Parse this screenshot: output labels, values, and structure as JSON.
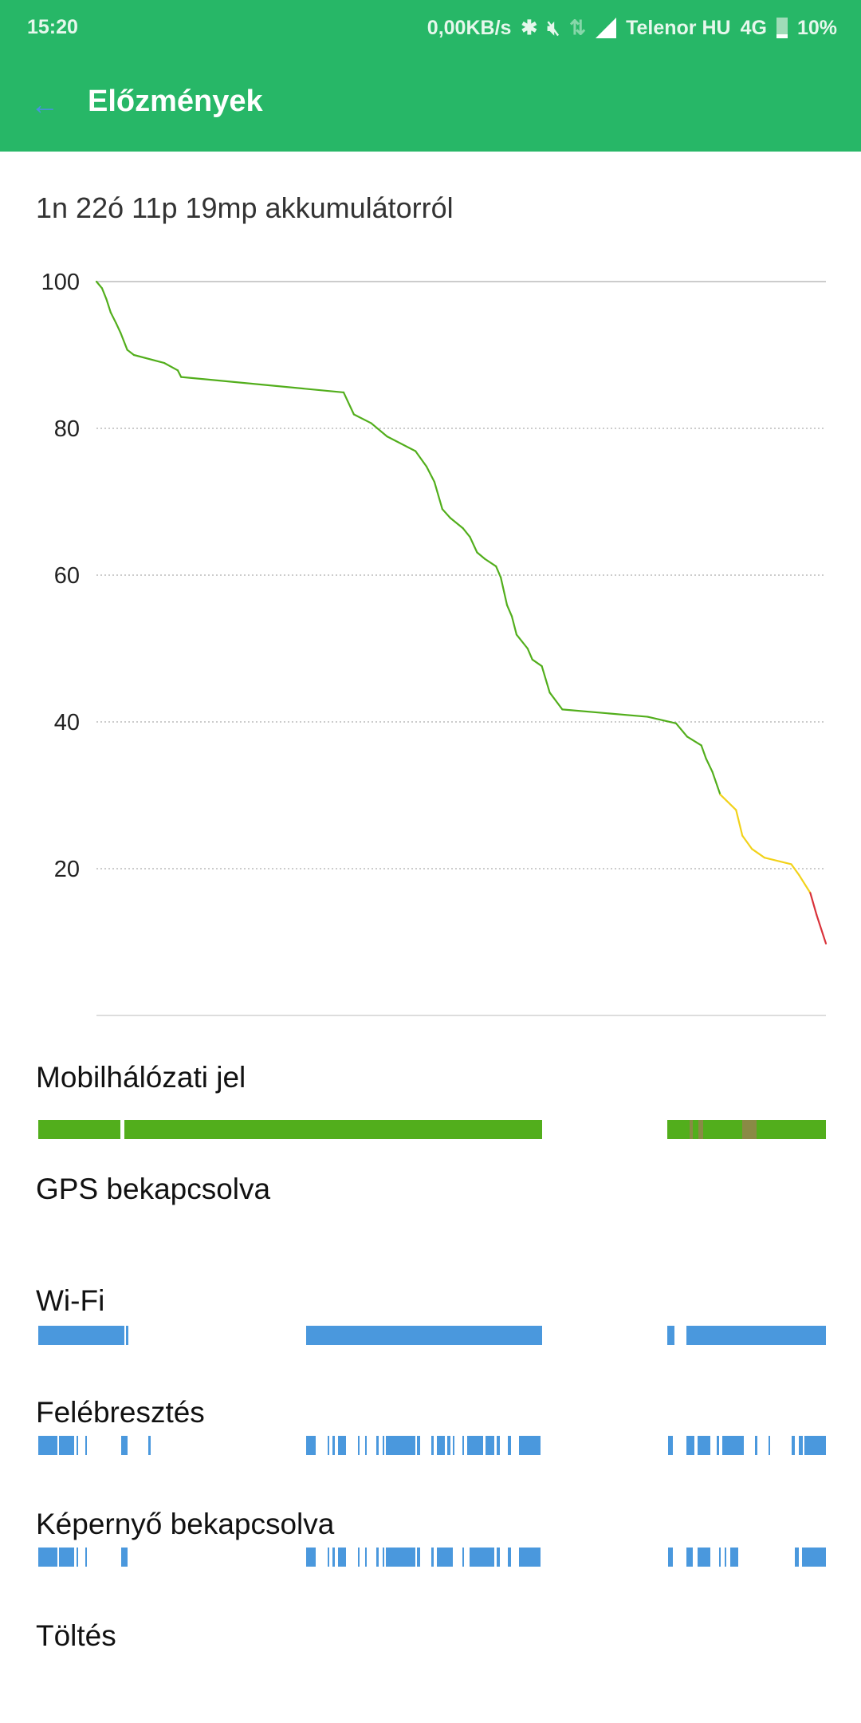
{
  "status_bar": {
    "time": "15:20",
    "net_speed": "0,00KB/s",
    "carrier": "Telenor HU",
    "network": "4G",
    "battery": "10%",
    "icons": [
      "bluetooth-icon",
      "vibrate-mute-icon",
      "data-arrows-icon",
      "signal-icon",
      "battery-icon"
    ]
  },
  "app_bar": {
    "title": "Előzmények",
    "back_icon": "arrow-back-icon"
  },
  "summary": "1n 22ó 11p 19mp akkumulátorról",
  "colors": {
    "header": "#27b767",
    "good": "#52ae1c",
    "warn": "#f2d21a",
    "low": "#d9323a",
    "signal_poor": "#8a8a45",
    "blue": "#4a98dd"
  },
  "chart_data": {
    "type": "line",
    "title": "",
    "xlabel": "",
    "ylabel": "",
    "ylim": [
      0,
      100
    ],
    "xlim_hours": [
      0,
      46.19
    ],
    "yticks": [
      "100",
      "80",
      "60",
      "40",
      "20"
    ],
    "grid": "horizontal dotted",
    "x_hours": [
      0,
      0.35,
      0.63,
      0.9,
      1.25,
      1.53,
      1.95,
      2.37,
      4.3,
      5.15,
      5.36,
      15.65,
      16.3,
      17.4,
      18.4,
      20.2,
      20.9,
      21.4,
      21.9,
      22.4,
      23.2,
      23.65,
      24.1,
      24.6,
      25.3,
      25.6,
      26,
      26.3,
      26.6,
      27.3,
      27.6,
      28.2,
      28.7,
      29.5,
      34.9,
      36.7,
      37.4,
      38.3,
      38.6,
      39,
      39.5,
      40.5,
      40.9,
      41.5,
      42.3,
      44,
      44.5,
      45.2,
      45.6,
      46.19
    ],
    "battery_percent": [
      100,
      99.1,
      97.6,
      95.8,
      94.3,
      93,
      90.7,
      90,
      88.9,
      87.9,
      87,
      84.9,
      81.9,
      80.7,
      78.9,
      76.9,
      74.8,
      72.7,
      69,
      67.8,
      66.4,
      65.2,
      63.1,
      62.2,
      61.2,
      59.7,
      55.9,
      54.4,
      51.9,
      50,
      48.5,
      47.6,
      44,
      41.7,
      40.7,
      39.8,
      38,
      36.8,
      35,
      33.2,
      30.1,
      28,
      24.5,
      22.7,
      21.5,
      20.6,
      19.1,
      16.7,
      13.7,
      9.8
    ]
  },
  "rows": [
    {
      "label": "Mobilhálózati jel",
      "color": "#52ae1c",
      "segments_hours": [
        [
          0,
          4.83
        ],
        [
          5.03,
          29.57
        ],
        [
          36.9,
          46.19
        ]
      ],
      "poor_hours": [
        [
          38.2,
          38.4
        ],
        [
          38.7,
          39.0
        ],
        [
          41.3,
          42.1
        ]
      ]
    },
    {
      "label": "GPS bekapcsolva",
      "color": "#4a98dd",
      "segments_hours": []
    },
    {
      "label": "Wi-Fi",
      "color": "#4a98dd",
      "segments_hours": [
        [
          0,
          5.03
        ],
        [
          5.15,
          5.28
        ],
        [
          15.72,
          29.57
        ],
        [
          36.9,
          37.3
        ],
        [
          38.0,
          46.19
        ]
      ]
    },
    {
      "label": "Felébresztés",
      "color": "#4a98dd",
      "segments_hours": [
        [
          0,
          1.14
        ],
        [
          1.23,
          2.1
        ],
        [
          2.26,
          2.33
        ],
        [
          2.75,
          2.84
        ],
        [
          4.84,
          5.23
        ],
        [
          6.45,
          6.61
        ],
        [
          15.72,
          16.27
        ],
        [
          16.98,
          17.08
        ],
        [
          17.24,
          17.4
        ],
        [
          17.56,
          18.04
        ],
        [
          18.75,
          18.85
        ],
        [
          19.17,
          19.27
        ],
        [
          19.81,
          19.97
        ],
        [
          20.2,
          20.3
        ],
        [
          20.39,
          22.13
        ],
        [
          22.23,
          22.39
        ],
        [
          23.03,
          23.19
        ],
        [
          23.36,
          23.84
        ],
        [
          24.0,
          24.16
        ],
        [
          24.32,
          24.42
        ],
        [
          24.87,
          24.97
        ],
        [
          25.13,
          26.09
        ],
        [
          26.25,
          26.74
        ],
        [
          26.9,
          27.06
        ],
        [
          27.54,
          27.7
        ],
        [
          28.19,
          29.47
        ],
        [
          36.94,
          37.2
        ],
        [
          38.0,
          38.49
        ],
        [
          38.65,
          39.39
        ],
        [
          39.78,
          39.94
        ],
        [
          40.1,
          41.39
        ],
        [
          42.03,
          42.19
        ],
        [
          42.84,
          42.9
        ],
        [
          44.19,
          44.38
        ],
        [
          44.61,
          44.83
        ],
        [
          44.93,
          46.19
        ]
      ]
    },
    {
      "label": "Képernyő bekapcsolva",
      "color": "#4a98dd",
      "segments_hours": [
        [
          0,
          1.14
        ],
        [
          1.23,
          2.1
        ],
        [
          2.26,
          2.33
        ],
        [
          2.75,
          2.84
        ],
        [
          4.84,
          5.23
        ],
        [
          15.72,
          16.27
        ],
        [
          16.98,
          17.08
        ],
        [
          17.24,
          17.4
        ],
        [
          17.56,
          18.04
        ],
        [
          18.75,
          18.85
        ],
        [
          19.17,
          19.27
        ],
        [
          19.81,
          19.97
        ],
        [
          20.2,
          20.3
        ],
        [
          20.39,
          22.13
        ],
        [
          22.23,
          22.39
        ],
        [
          23.03,
          23.19
        ],
        [
          23.36,
          24.32
        ],
        [
          24.87,
          24.97
        ],
        [
          25.29,
          26.74
        ],
        [
          26.9,
          27.06
        ],
        [
          27.54,
          27.7
        ],
        [
          28.19,
          29.47
        ],
        [
          36.94,
          37.2
        ],
        [
          38.0,
          38.39
        ],
        [
          38.65,
          39.39
        ],
        [
          39.94,
          40.03
        ],
        [
          40.26,
          40.36
        ],
        [
          40.58,
          41.07
        ],
        [
          44.38,
          44.61
        ],
        [
          44.77,
          46.19
        ]
      ]
    },
    {
      "label": "Töltés",
      "color": "#4a98dd",
      "segments_hours": []
    }
  ]
}
